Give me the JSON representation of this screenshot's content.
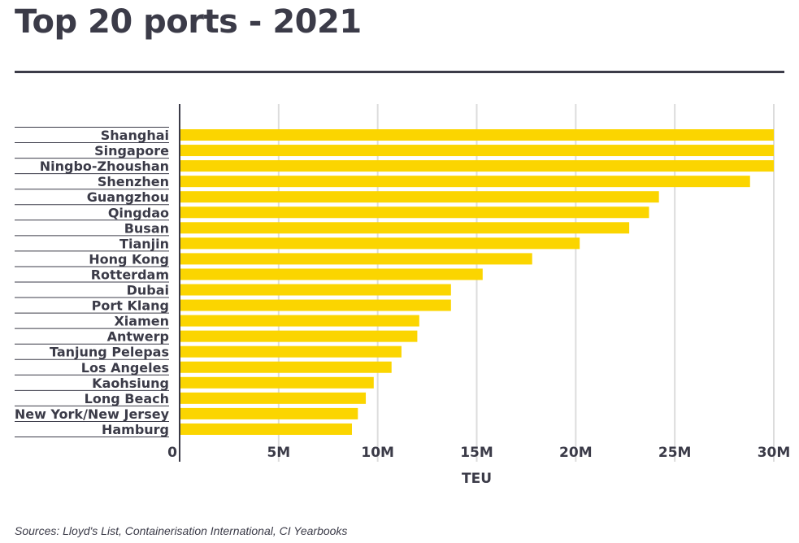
{
  "title": "Top 20 ports - 2021",
  "source": "Sources: Lloyd's List, Containerisation International, CI Yearbooks",
  "chart_data": {
    "type": "bar",
    "orientation": "horizontal",
    "title": "Top 20 ports - 2021",
    "xlabel": "TEU",
    "ylabel": "",
    "xlim": [
      0,
      30
    ],
    "x_ticks": [
      0,
      5,
      10,
      15,
      20,
      25,
      30
    ],
    "x_tick_labels": [
      "0",
      "5M",
      "10M",
      "15M",
      "20M",
      "25M",
      "30M"
    ],
    "grid": "vertical",
    "bar_color": "#FBD500",
    "categories": [
      "Shanghai",
      "Singapore",
      "Ningbo-Zhoushan",
      "Shenzhen",
      "Guangzhou",
      "Qingdao",
      "Busan",
      "Tianjin",
      "Hong Kong",
      "Rotterdam",
      "Dubai",
      "Port Klang",
      "Xiamen",
      "Antwerp",
      "Tanjung Pelepas",
      "Los Angeles",
      "Kaohsiung",
      "Long Beach",
      "New York/New Jersey",
      "Hamburg"
    ],
    "values": [
      30,
      30,
      30,
      28.8,
      24.2,
      23.7,
      22.7,
      20.2,
      17.8,
      15.3,
      13.7,
      13.7,
      12.1,
      12.0,
      11.2,
      10.7,
      9.8,
      9.4,
      9.0,
      8.7
    ]
  }
}
